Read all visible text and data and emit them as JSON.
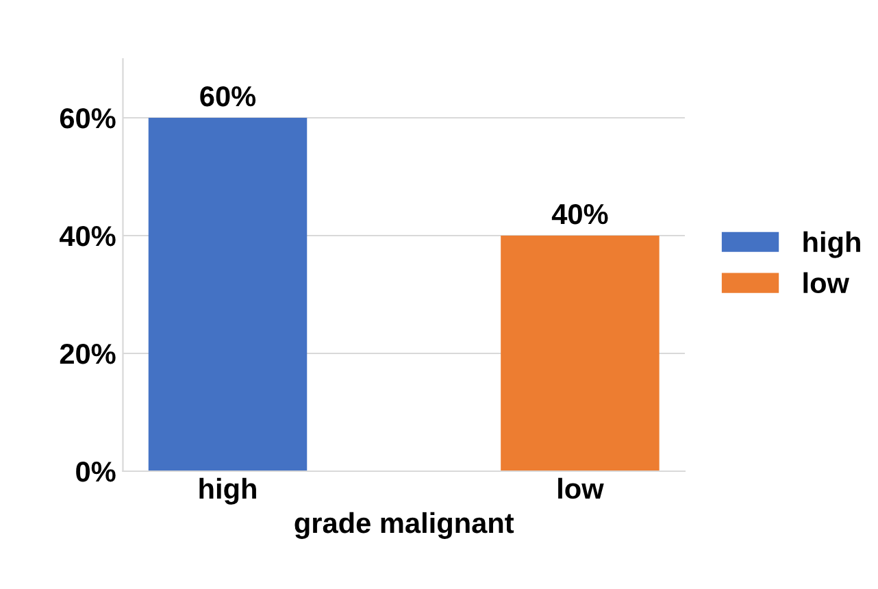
{
  "chart_data": {
    "type": "bar",
    "xlabel": "grade malignant",
    "categories": [
      "high",
      "low"
    ],
    "stacked": true,
    "series": [
      {
        "name": "high",
        "color": "#4472c4",
        "values": [
          60,
          null
        ],
        "value_labels": [
          "60%",
          null
        ]
      },
      {
        "name": "low",
        "color": "#ed7d31",
        "values": [
          null,
          40
        ],
        "value_labels": [
          null,
          "40%"
        ]
      }
    ],
    "ylim": [
      0,
      70
    ],
    "yticks": [
      {
        "value": 0,
        "label": "0%"
      },
      {
        "value": 20,
        "label": "20%"
      },
      {
        "value": 40,
        "label": "40%"
      },
      {
        "value": 60,
        "label": "60%"
      }
    ],
    "grid": "y",
    "legend": "right"
  }
}
